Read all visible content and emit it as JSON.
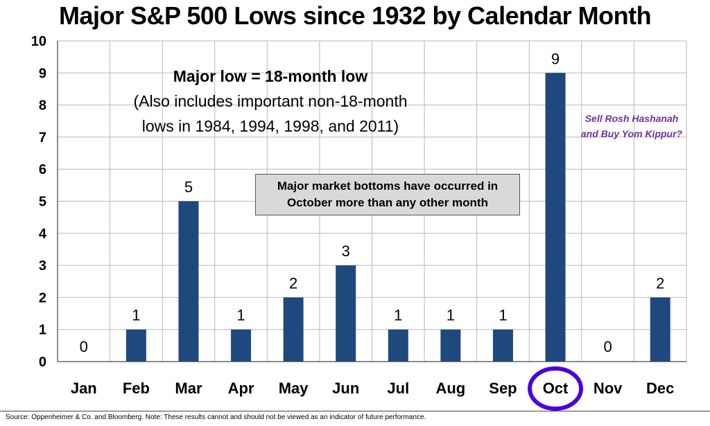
{
  "chart_data": {
    "type": "bar",
    "title": "Major S&P 500 Lows since 1932 by Calendar Month",
    "categories": [
      "Jan",
      "Feb",
      "Mar",
      "Apr",
      "May",
      "Jun",
      "Jul",
      "Aug",
      "Sep",
      "Oct",
      "Nov",
      "Dec"
    ],
    "values": [
      0,
      1,
      5,
      1,
      2,
      3,
      1,
      1,
      1,
      9,
      0,
      2
    ],
    "ylim": [
      0,
      10
    ],
    "yticks": [
      0,
      1,
      2,
      3,
      4,
      5,
      6,
      7,
      8,
      9,
      10
    ],
    "xlabel": "",
    "ylabel": "",
    "grid": true,
    "bar_color": "#1f497d",
    "highlighted_category": "Oct",
    "highlight_color": "#4a00e0",
    "annotations": {
      "definition_title": "Major  low = 18-month low",
      "definition_lines": [
        "(Also includes important non-18-month",
        "lows in 1984, 1994, 1998, and 2011)"
      ],
      "callout": "Major market bottoms have occurred in October more than any other month",
      "side_note": "Sell Rosh Hashanah and Buy Yom Kippur?"
    },
    "source": "Source:  Oppenheimer & Co. and Bloomberg.  Note: These results cannot and should not be viewed as an indicator of future performance."
  }
}
